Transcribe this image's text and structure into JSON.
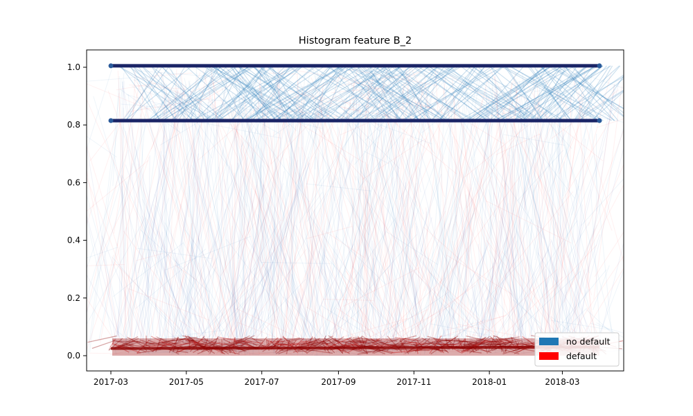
{
  "chart_data": {
    "type": "line",
    "title": "Histogram feature B_2",
    "xlabel": "",
    "ylabel": "",
    "x_range": [
      "2017-03-01",
      "2018-03-31"
    ],
    "ylim": [
      -0.05,
      1.05
    ],
    "x_ticks": [
      "2017-03",
      "2017-05",
      "2017-07",
      "2017-09",
      "2017-11",
      "2018-01",
      "2018-03"
    ],
    "y_ticks": [
      "0.0",
      "0.2",
      "0.4",
      "0.6",
      "0.8",
      "1.0"
    ],
    "grid": false,
    "legend": "bottom-right",
    "series": [
      {
        "name": "no default",
        "color": "#1f77b4",
        "bands": [
          0.815,
          1.005
        ]
      },
      {
        "name": "default",
        "color": "#ff0000",
        "bands": [
          0.0,
          0.06
        ]
      }
    ]
  },
  "colors": {
    "dark_band": "#1a2466",
    "dark_red": "#8b0000"
  }
}
